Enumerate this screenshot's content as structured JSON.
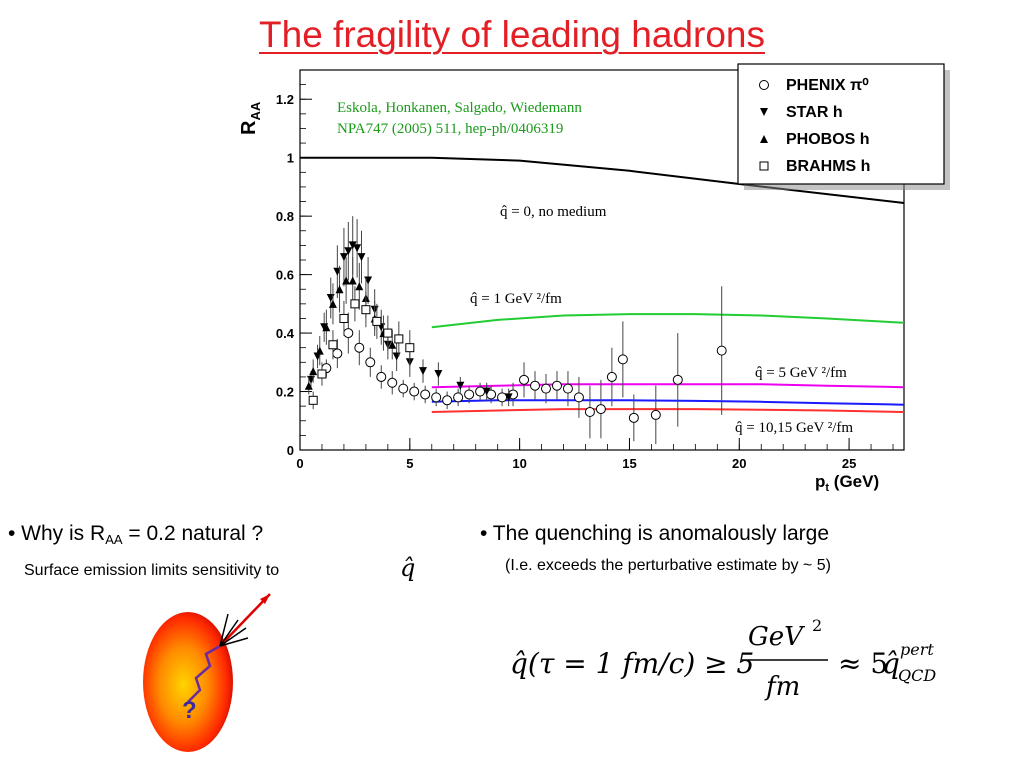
{
  "slide": {
    "title": "The fragility of leading hadrons",
    "bullet_left_prefix": "• Why is R",
    "bullet_left_sub": "AA",
    "bullet_left_suffix": " = 0.2 natural ?",
    "left_subtext": "Surface emission limits sensitivity to",
    "bullet_right": "• The quenching is anomalously large",
    "right_subtext": "(I.e. exceeds the perturbative estimate by ~ 5)",
    "nucleus_question": "?",
    "formula": {
      "lhs": "q̂(τ = 1 fm/c) ≥ 5",
      "numerator": "GeV",
      "numerator_power": "2",
      "denominator": "fm",
      "approx": "≈ 5",
      "qhat": "q̂",
      "sup": "pert",
      "sub": "QCD"
    }
  },
  "chart_data": {
    "type": "scatter",
    "title": "",
    "xlabel": "GeV",
    "xlabel_var": "p",
    "xlabel_sub": "t",
    "ylabel": "R",
    "ylabel_sub": "AA",
    "xlim": [
      0,
      27.5
    ],
    "ylim": [
      0,
      1.3
    ],
    "xticks": [
      0,
      5,
      10,
      15,
      20,
      25
    ],
    "yticks": [
      0,
      0.2,
      0.4,
      0.6,
      0.8,
      1,
      1.2
    ],
    "reference": "Eskola, Honkanen, Salgado, Wiedemann",
    "reference_line2": "NPA747 (2005) 511, hep-ph/0406319",
    "legend_position": "top-right",
    "legend": [
      {
        "marker": "circle-open",
        "label": "PHENIX π⁰"
      },
      {
        "marker": "triangle-down",
        "label": "STAR h"
      },
      {
        "marker": "triangle-up",
        "label": "PHOBOS h"
      },
      {
        "marker": "square-open",
        "label": "BRAHMS h"
      }
    ],
    "curves": [
      {
        "label": "q̂ = 0, no medium",
        "color": "#000000",
        "x": [
          0,
          6,
          10,
          15,
          20,
          27.5
        ],
        "y": [
          1.0,
          1.0,
          0.99,
          0.955,
          0.91,
          0.845
        ]
      },
      {
        "label": "q̂ = 1 GeV ²/fm",
        "color": "#22cc33",
        "x": [
          6,
          9,
          12,
          15,
          18,
          21,
          24,
          27.5
        ],
        "y": [
          0.42,
          0.445,
          0.46,
          0.465,
          0.465,
          0.46,
          0.45,
          0.435
        ]
      },
      {
        "label": "q̂ = 5 GeV ²/fm",
        "color": "#ee00ee",
        "x": [
          6,
          9,
          12,
          15,
          18,
          21,
          24,
          27.5
        ],
        "y": [
          0.215,
          0.22,
          0.225,
          0.225,
          0.225,
          0.225,
          0.22,
          0.215
        ]
      },
      {
        "label": "",
        "color": "#1a1aff",
        "x": [
          6,
          9,
          12,
          15,
          18,
          21,
          24,
          27.5
        ],
        "y": [
          0.165,
          0.17,
          0.17,
          0.17,
          0.168,
          0.165,
          0.16,
          0.155
        ]
      },
      {
        "label": "q̂ = 10,15 GeV ²/fm",
        "color": "#ff3030",
        "x": [
          6,
          9,
          12,
          15,
          18,
          21,
          24,
          27.5
        ],
        "y": [
          0.13,
          0.135,
          0.14,
          0.14,
          0.14,
          0.138,
          0.135,
          0.13
        ]
      }
    ],
    "series": [
      {
        "name": "PHENIX π⁰",
        "marker": "circle-open",
        "x": [
          1.2,
          1.7,
          2.2,
          2.7,
          3.2,
          3.7,
          4.2,
          4.7,
          5.2,
          5.7,
          6.2,
          6.7,
          7.2,
          7.7,
          8.2,
          8.7,
          9.2,
          9.7,
          10.2,
          10.7,
          11.2,
          11.7,
          12.2,
          12.7,
          13.2,
          13.7,
          14.2,
          14.7,
          15.2,
          16.2,
          17.2,
          19.2
        ],
        "y": [
          0.28,
          0.33,
          0.4,
          0.35,
          0.3,
          0.25,
          0.23,
          0.21,
          0.2,
          0.19,
          0.18,
          0.17,
          0.18,
          0.19,
          0.2,
          0.19,
          0.18,
          0.19,
          0.24,
          0.22,
          0.21,
          0.22,
          0.21,
          0.18,
          0.13,
          0.14,
          0.25,
          0.31,
          0.11,
          0.12,
          0.24,
          0.34
        ],
        "err": [
          0.03,
          0.05,
          0.07,
          0.06,
          0.05,
          0.04,
          0.04,
          0.03,
          0.03,
          0.03,
          0.03,
          0.03,
          0.03,
          0.03,
          0.03,
          0.03,
          0.03,
          0.04,
          0.06,
          0.05,
          0.05,
          0.05,
          0.06,
          0.07,
          0.09,
          0.1,
          0.1,
          0.13,
          0.08,
          0.1,
          0.16,
          0.22
        ]
      },
      {
        "name": "STAR h",
        "marker": "triangle-down",
        "x": [
          0.5,
          0.8,
          1.1,
          1.4,
          1.7,
          2.0,
          2.2,
          2.4,
          2.6,
          2.8,
          3.1,
          3.4,
          3.7,
          4.0,
          4.4,
          5.0,
          5.6,
          6.3,
          7.3,
          8.5,
          9.5
        ],
        "y": [
          0.24,
          0.32,
          0.42,
          0.52,
          0.61,
          0.66,
          0.68,
          0.7,
          0.69,
          0.66,
          0.58,
          0.48,
          0.42,
          0.36,
          0.32,
          0.3,
          0.27,
          0.26,
          0.22,
          0.2,
          0.18
        ],
        "err": [
          0.03,
          0.04,
          0.05,
          0.07,
          0.09,
          0.1,
          0.1,
          0.1,
          0.1,
          0.09,
          0.08,
          0.07,
          0.06,
          0.05,
          0.05,
          0.05,
          0.04,
          0.04,
          0.03,
          0.03,
          0.03
        ]
      },
      {
        "name": "PHOBOS h",
        "marker": "triangle-up",
        "x": [
          0.4,
          0.6,
          0.9,
          1.2,
          1.5,
          1.8,
          2.1,
          2.4,
          2.7,
          3.0,
          3.4,
          3.8,
          4.2
        ],
        "y": [
          0.22,
          0.27,
          0.34,
          0.42,
          0.5,
          0.55,
          0.58,
          0.58,
          0.56,
          0.52,
          0.45,
          0.4,
          0.36
        ],
        "err": [
          0.03,
          0.04,
          0.05,
          0.06,
          0.07,
          0.08,
          0.08,
          0.08,
          0.08,
          0.07,
          0.06,
          0.06,
          0.05
        ]
      },
      {
        "name": "BRAHMS h",
        "marker": "square-open",
        "x": [
          0.6,
          1.0,
          1.5,
          2.0,
          2.5,
          3.0,
          3.5,
          4.0,
          4.5,
          5.0
        ],
        "y": [
          0.17,
          0.26,
          0.36,
          0.45,
          0.5,
          0.48,
          0.44,
          0.4,
          0.38,
          0.35
        ],
        "err": [
          0.03,
          0.04,
          0.05,
          0.06,
          0.06,
          0.06,
          0.06,
          0.06,
          0.06,
          0.06
        ]
      }
    ]
  }
}
